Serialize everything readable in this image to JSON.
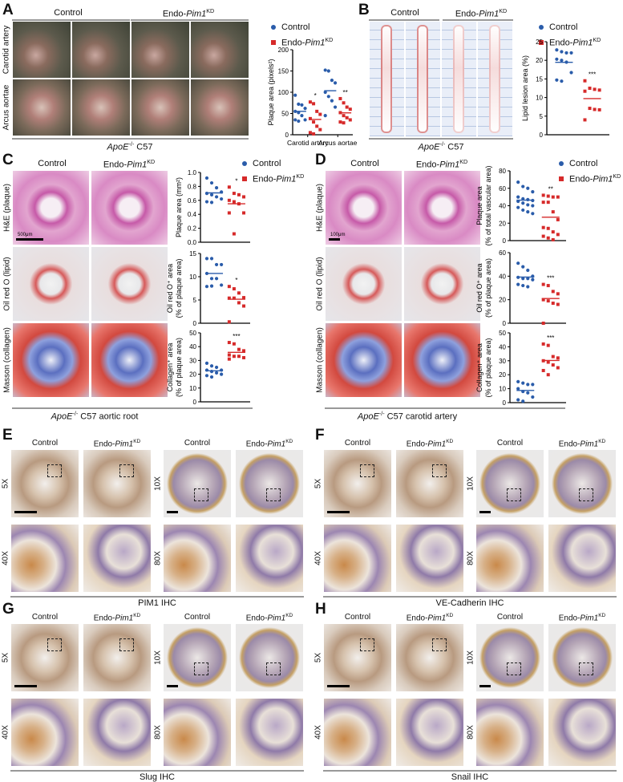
{
  "colors": {
    "control": "#2a5caa",
    "knockdown": "#d62a2a"
  },
  "legend": {
    "control": "Control",
    "kd_prefix": "Endo-",
    "kd_gene": "Pim1",
    "kd_sup": "KD"
  },
  "strain": {
    "gene": "ApoE",
    "sup": "-/-",
    "suffix": " C57"
  },
  "panels": {
    "A": {
      "label": "A",
      "rows": [
        "Carotid artery",
        "Arcus aortae"
      ],
      "caption_suffix": ""
    },
    "B": {
      "label": "B",
      "caption_suffix": ""
    },
    "C": {
      "label": "C",
      "rows": [
        "H&E (plaque)",
        "Oil red O (lipid)",
        "Masson (collagen)"
      ],
      "caption_suffix": " aortic root",
      "scale": "500μm"
    },
    "D": {
      "label": "D",
      "rows": [
        "H&E (plaque)",
        "Oil red O (lipid)",
        "Masson (collagen)"
      ],
      "caption_suffix": " carotid artery",
      "scale": "100μm"
    },
    "E": {
      "label": "E",
      "mags": [
        "5X",
        "40X",
        "10X",
        "80X"
      ],
      "caption": "PIM1 IHC"
    },
    "F": {
      "label": "F",
      "mags": [
        "5X",
        "40X",
        "10X",
        "80X"
      ],
      "caption": "VE-Cadherin IHC"
    },
    "G": {
      "label": "G",
      "mags": [
        "5X",
        "40X",
        "10X",
        "80X"
      ],
      "caption": "Slug IHC"
    },
    "H": {
      "label": "H",
      "mags": [
        "5X",
        "40X",
        "10X",
        "80X"
      ],
      "caption": "Snail IHC"
    }
  },
  "chart_data": [
    {
      "panel": "A",
      "type": "scatter",
      "ylabel": [
        "Plaque area (pixels²)"
      ],
      "ylim": [
        0,
        200
      ],
      "yticks": [
        0,
        50,
        100,
        150,
        200
      ],
      "categories": [
        "Carotid artery",
        "Arcus aortae"
      ],
      "series": [
        {
          "name": "Control",
          "values": [
            [
              93,
              72,
              70,
              62,
              55,
              52,
              45,
              35,
              35,
              32
            ],
            [
              152,
              150,
              128,
              122,
              100,
              90,
              80,
              65,
              45
            ]
          ]
        },
        {
          "name": "Endo-Pim1KD",
          "values": [
            [
              77,
              73,
              55,
              48,
              38,
              30,
              20,
              12,
              5,
              2
            ],
            [
              85,
              75,
              65,
              60,
              52,
              45,
              40,
              35,
              30,
              28
            ]
          ]
        }
      ],
      "annotations": [
        "*",
        "**"
      ]
    },
    {
      "panel": "B",
      "type": "scatter",
      "ylabel": [
        "Lipid lesion area (%)"
      ],
      "ylim": [
        0,
        25
      ],
      "yticks": [
        0,
        5,
        10,
        15,
        20,
        25
      ],
      "series": [
        {
          "name": "Control",
          "values": [
            [
              22.8,
              22.3,
              22.0,
              22.0,
              20.3,
              20.0,
              19.5,
              16.7,
              14.7,
              14.4
            ]
          ]
        },
        {
          "name": "Endo-Pim1KD",
          "values": [
            [
              14.5,
              12.5,
              12.2,
              12.0,
              11.7,
              7.1,
              6.8,
              6.7,
              4.0
            ]
          ]
        }
      ],
      "annotations": [
        "***"
      ]
    },
    {
      "panel": "C",
      "type": "scatter",
      "ylabel": [
        "Plaque area (mm²)"
      ],
      "ylim": [
        0,
        1.0
      ],
      "yticks": [
        0.0,
        0.2,
        0.4,
        0.6,
        0.8,
        1.0
      ],
      "series": [
        {
          "name": "Control",
          "values": [
            [
              0.92,
              0.85,
              0.78,
              0.72,
              0.7,
              0.68,
              0.65,
              0.62,
              0.58,
              0.57
            ]
          ]
        },
        {
          "name": "Endo-Pim1KD",
          "values": [
            [
              0.79,
              0.7,
              0.68,
              0.65,
              0.6,
              0.58,
              0.55,
              0.42,
              0.42,
              0.12
            ]
          ]
        }
      ],
      "annotations": [
        "*"
      ]
    },
    {
      "panel": "C",
      "type": "scatter",
      "ylabel": [
        "Oil red O⁺ area",
        "(% of plaque area)"
      ],
      "ylim": [
        0,
        15
      ],
      "yticks": [
        0,
        5,
        10,
        15
      ],
      "series": [
        {
          "name": "Control",
          "values": [
            [
              13.9,
              13.9,
              12.6,
              12.6,
              10.7,
              9.6,
              9.6,
              8.2,
              7.9,
              8.0
            ]
          ]
        },
        {
          "name": "Endo-Pim1KD",
          "values": [
            [
              7.9,
              7.4,
              6.5,
              5.5,
              5.4,
              5.4,
              4.4,
              3.7,
              0.3
            ]
          ]
        }
      ],
      "annotations": [
        "*"
      ]
    },
    {
      "panel": "C",
      "type": "scatter",
      "ylabel": [
        "Collagen⁺ area",
        "(% of plaque area)"
      ],
      "ylim": [
        0,
        50
      ],
      "yticks": [
        0,
        10,
        20,
        30,
        40,
        50
      ],
      "series": [
        {
          "name": "Control",
          "values": [
            [
              28,
              26,
              25,
              23,
              23,
              22,
              21,
              20,
              19,
              18
            ]
          ]
        },
        {
          "name": "Endo-Pim1KD",
          "values": [
            [
              43,
              42,
              38,
              37,
              34,
              33,
              33,
              32,
              31
            ]
          ]
        }
      ],
      "annotations": [
        "***"
      ]
    },
    {
      "panel": "D",
      "type": "scatter",
      "ylabel": [
        "Plaque area",
        "(% of total vascular area)"
      ],
      "ylim": [
        0,
        80
      ],
      "yticks": [
        0,
        20,
        40,
        60,
        80
      ],
      "series": [
        {
          "name": "Control",
          "values": [
            [
              67,
              62,
              60,
              56,
              50,
              48,
              47,
              46,
              45,
              43,
              41,
              40,
              38,
              35,
              33,
              31
            ]
          ]
        },
        {
          "name": "Endo-Pim1KD",
          "values": [
            [
              52,
              51,
              50,
              50,
              44,
              44,
              33,
              24,
              15,
              14,
              10,
              7,
              5,
              3,
              1
            ]
          ]
        }
      ],
      "annotations": [
        "**"
      ]
    },
    {
      "panel": "D",
      "type": "scatter",
      "ylabel": [
        "Oil red O⁺ area",
        "(% of plaque area)"
      ],
      "ylim": [
        0,
        60
      ],
      "yticks": [
        0,
        20,
        40,
        60
      ],
      "series": [
        {
          "name": "Control",
          "values": [
            [
              51,
              48,
              45,
              40,
              39,
              38,
              38,
              37,
              33,
              32,
              31
            ]
          ]
        },
        {
          "name": "Endo-Pim1KD",
          "values": [
            [
              33,
              32,
              27,
              25,
              20,
              19,
              17,
              16,
              0
            ]
          ]
        }
      ],
      "annotations": [
        "***"
      ]
    },
    {
      "panel": "D",
      "type": "scatter",
      "ylabel": [
        "Collagen⁺ area",
        "(% of plaque area)"
      ],
      "ylim": [
        0,
        50
      ],
      "yticks": [
        0,
        10,
        20,
        30,
        40,
        50
      ],
      "series": [
        {
          "name": "Control",
          "values": [
            [
              15,
              14,
              13,
              13,
              10,
              8,
              7,
              4,
              2,
              1
            ]
          ]
        },
        {
          "name": "Endo-Pim1KD",
          "values": [
            [
              42,
              41,
              33,
              32,
              30,
              29,
              27,
              25,
              23,
              20
            ]
          ]
        }
      ],
      "annotations": [
        "***"
      ]
    }
  ]
}
